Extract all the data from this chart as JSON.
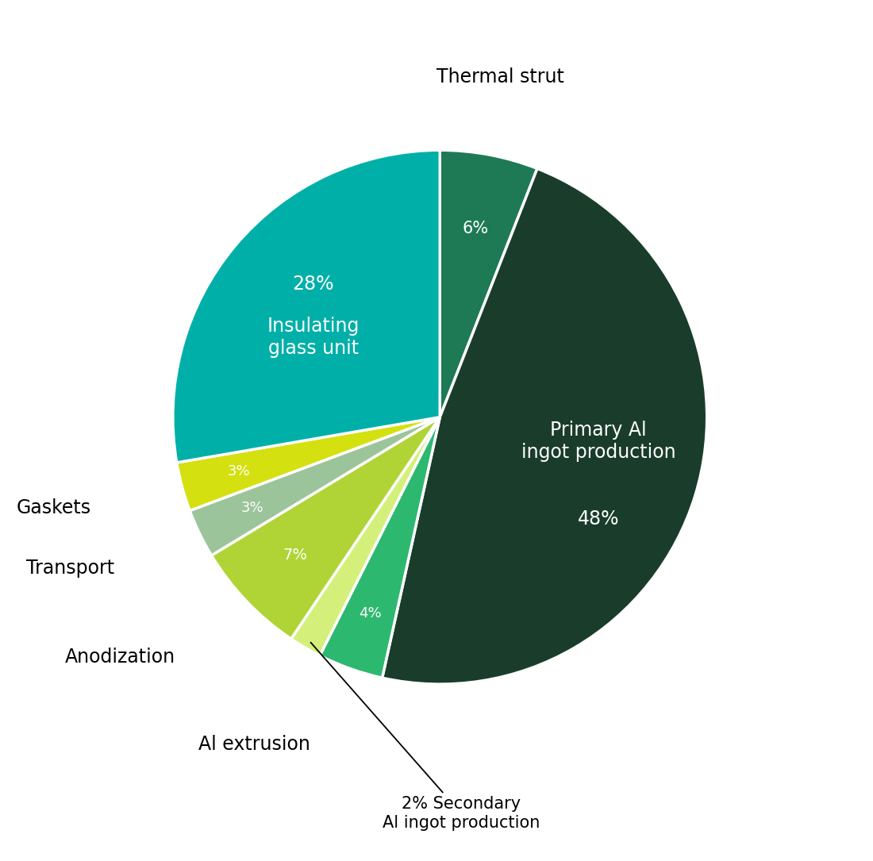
{
  "slices": [
    {
      "label": "Thermal strut",
      "pct": 6,
      "color": "#1e7a55"
    },
    {
      "label": "Primary Al\ningot production",
      "pct": 48,
      "color": "#1a3d2b"
    },
    {
      "label": "Al extrusion",
      "pct": 4,
      "color": "#2db870"
    },
    {
      "label": "Secondary\nAl ingot production",
      "pct": 2,
      "color": "#d4f07a"
    },
    {
      "label": "Anodization",
      "pct": 7,
      "color": "#b0d435"
    },
    {
      "label": "Transport",
      "pct": 3,
      "color": "#9cc49a"
    },
    {
      "label": "Gaskets",
      "pct": 3,
      "color": "#d4e010"
    },
    {
      "label": "Insulating\nglass unit",
      "pct": 28,
      "color": "#00b0a8"
    }
  ],
  "start_angle": 90,
  "bg": "#ffffff",
  "wedge_linewidth": 2.5,
  "wedge_edgecolor": "#ffffff"
}
